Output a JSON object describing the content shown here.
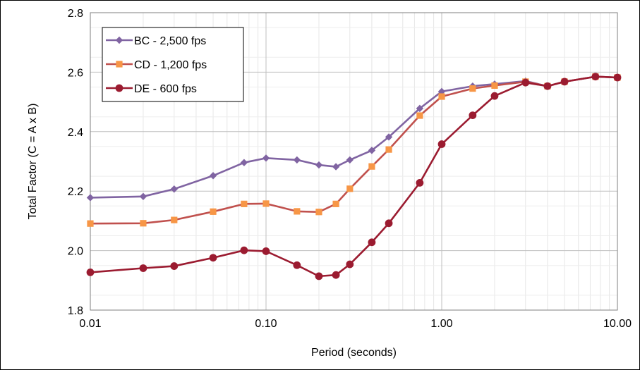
{
  "chart_data": {
    "type": "line",
    "title": "",
    "xlabel": "Period (seconds)",
    "ylabel": "Total Factor (C = A x B)",
    "x_scale": "log",
    "xlim": [
      0.01,
      10.0
    ],
    "ylim": [
      1.8,
      2.8
    ],
    "x_ticks": [
      {
        "value": 0.01,
        "label": "0.01"
      },
      {
        "value": 0.1,
        "label": "0.10"
      },
      {
        "value": 1.0,
        "label": "1.00"
      },
      {
        "value": 10.0,
        "label": "10.00"
      }
    ],
    "y_ticks": [
      {
        "value": 1.8,
        "label": "1.8"
      },
      {
        "value": 2.0,
        "label": "2.0"
      },
      {
        "value": 2.2,
        "label": "2.2"
      },
      {
        "value": 2.4,
        "label": "2.4"
      },
      {
        "value": 2.6,
        "label": "2.6"
      },
      {
        "value": 2.8,
        "label": "2.8"
      }
    ],
    "grid": true,
    "legend_position": "top-left",
    "series": [
      {
        "name": "BC - 2,500 fps",
        "color": "#8064A2",
        "marker": "diamond",
        "x": [
          0.01,
          0.02,
          0.03,
          0.05,
          0.075,
          0.1,
          0.15,
          0.2,
          0.25,
          0.3,
          0.4,
          0.5,
          0.75,
          1.0,
          1.5,
          2.0,
          3.0,
          4.0,
          5.0,
          7.5,
          10.0
        ],
        "y": [
          2.178,
          2.182,
          2.207,
          2.252,
          2.296,
          2.311,
          2.305,
          2.288,
          2.282,
          2.305,
          2.337,
          2.382,
          2.478,
          2.535,
          2.553,
          2.56,
          2.57,
          2.553,
          2.568,
          2.585,
          2.582
        ]
      },
      {
        "name": "CD - 1,200 fps",
        "color": "#F79646",
        "line_color": "#C0504D",
        "marker": "square",
        "x": [
          0.01,
          0.02,
          0.03,
          0.05,
          0.075,
          0.1,
          0.15,
          0.2,
          0.25,
          0.3,
          0.4,
          0.5,
          0.75,
          1.0,
          1.5,
          2.0,
          3.0,
          4.0,
          5.0,
          7.5,
          10.0
        ],
        "y": [
          2.091,
          2.092,
          2.103,
          2.131,
          2.157,
          2.158,
          2.132,
          2.13,
          2.157,
          2.208,
          2.283,
          2.34,
          2.454,
          2.518,
          2.545,
          2.555,
          2.568,
          2.553,
          2.568,
          2.585,
          2.582
        ]
      },
      {
        "name": "DE - 600 fps",
        "color": "#9B1B30",
        "marker": "circle",
        "x": [
          0.01,
          0.02,
          0.03,
          0.05,
          0.075,
          0.1,
          0.15,
          0.2,
          0.25,
          0.3,
          0.4,
          0.5,
          0.75,
          1.0,
          1.5,
          2.0,
          3.0,
          4.0,
          5.0,
          7.5,
          10.0
        ],
        "y": [
          1.927,
          1.941,
          1.948,
          1.976,
          2.001,
          1.998,
          1.951,
          1.914,
          1.918,
          1.954,
          2.028,
          2.092,
          2.228,
          2.358,
          2.455,
          2.52,
          2.565,
          2.553,
          2.568,
          2.585,
          2.582
        ]
      }
    ]
  }
}
